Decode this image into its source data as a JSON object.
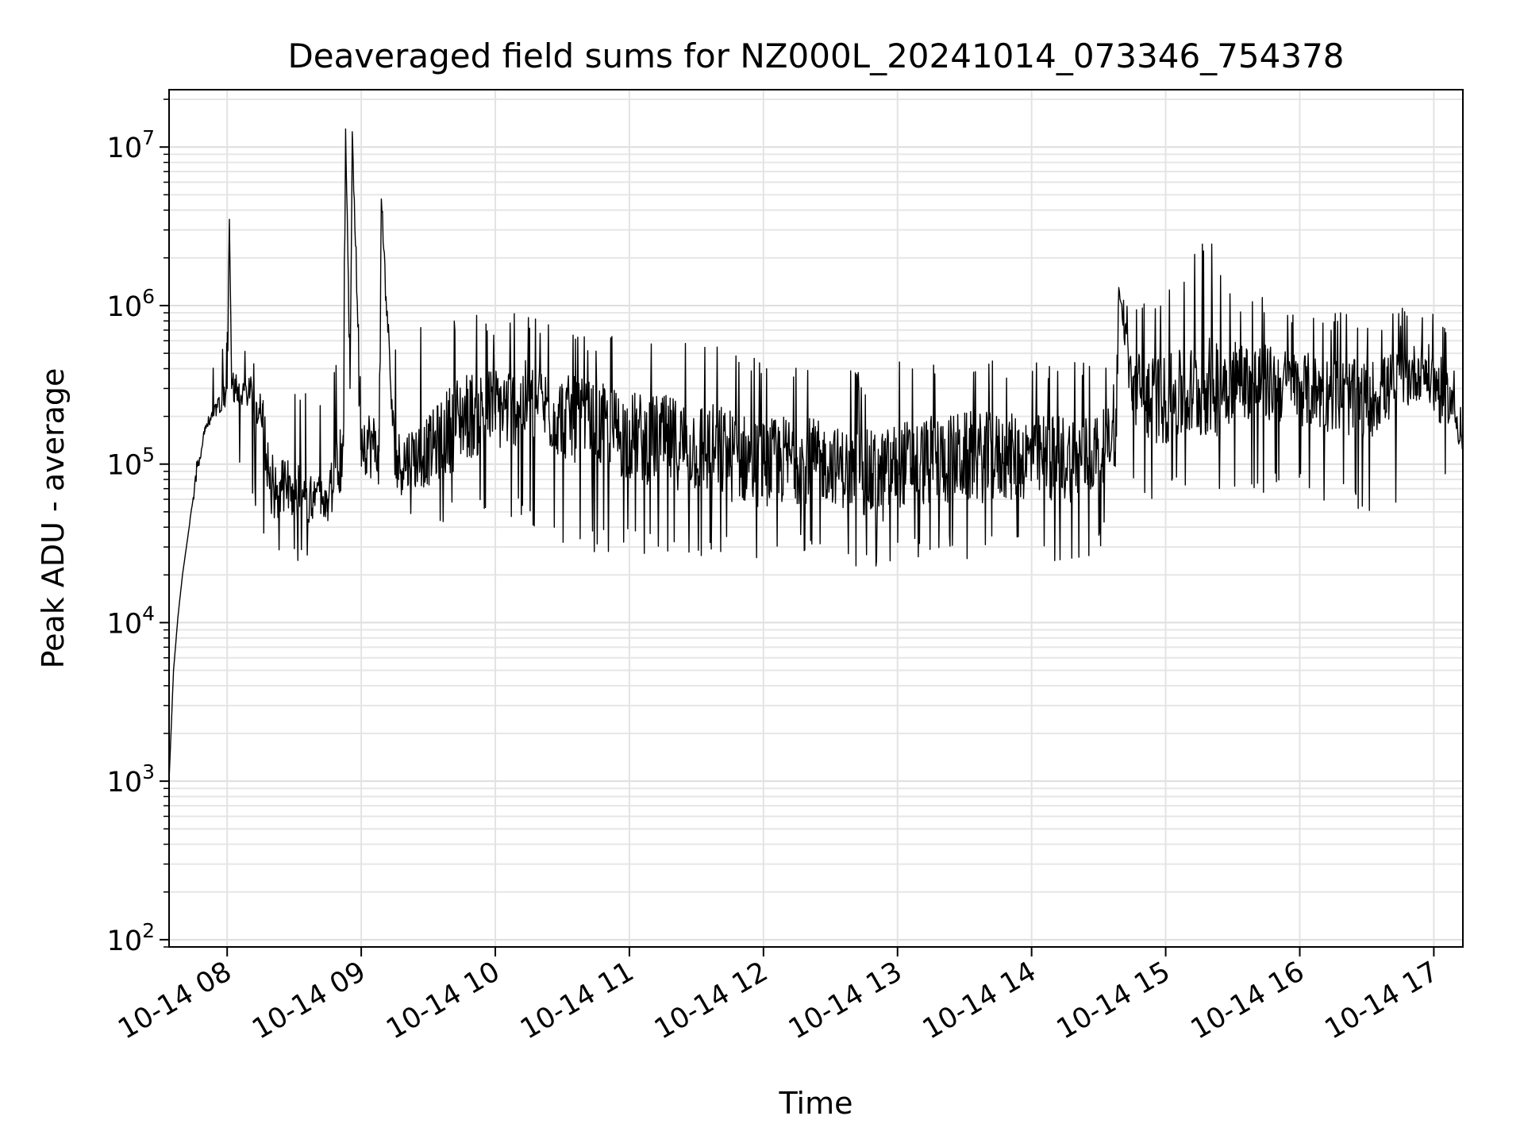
{
  "chart_data": {
    "type": "line",
    "title": "Deaveraged field sums for NZ000L_20241014_073346_754378",
    "xlabel": "Time",
    "ylabel": "Peak ADU - average",
    "yscale": "log",
    "ylim": [
      90,
      23000000
    ],
    "xlim": [
      "2024-10-14 07:34",
      "2024-10-14 17:13"
    ],
    "grid": true,
    "legend": "none",
    "line_color": "#000000",
    "x_tick_labels": [
      "10-14 08",
      "10-14 09",
      "10-14 10",
      "10-14 11",
      "10-14 12",
      "10-14 13",
      "10-14 14",
      "10-14 15",
      "10-14 16",
      "10-14 17"
    ],
    "x_tick_times": [
      "2024-10-14 08:00",
      "2024-10-14 09:00",
      "2024-10-14 10:00",
      "2024-10-14 11:00",
      "2024-10-14 12:00",
      "2024-10-14 13:00",
      "2024-10-14 14:00",
      "2024-10-14 15:00",
      "2024-10-14 16:00",
      "2024-10-14 17:00"
    ],
    "y_tick_values": [
      100,
      1000,
      10000,
      100000,
      1000000,
      10000000
    ],
    "y_tick_labels": [
      {
        "base": "10",
        "exp": "2"
      },
      {
        "base": "10",
        "exp": "3"
      },
      {
        "base": "10",
        "exp": "4"
      },
      {
        "base": "10",
        "exp": "5"
      },
      {
        "base": "10",
        "exp": "6"
      },
      {
        "base": "10",
        "exp": "7"
      }
    ],
    "series": [
      {
        "x": [
          "2024-10-14 07:34",
          "2024-10-14 07:36",
          "2024-10-14 07:38",
          "2024-10-14 07:40",
          "2024-10-14 07:43",
          "2024-10-14 07:46",
          "2024-10-14 07:50",
          "2024-10-14 07:55",
          "2024-10-14 08:00",
          "2024-10-14 08:01",
          "2024-10-14 08:02",
          "2024-10-14 08:10",
          "2024-10-14 08:16",
          "2024-10-14 08:19",
          "2024-10-14 08:25",
          "2024-10-14 08:35",
          "2024-10-14 08:45",
          "2024-10-14 08:52",
          "2024-10-14 08:53",
          "2024-10-14 08:55",
          "2024-10-14 08:56",
          "2024-10-14 09:00",
          "2024-10-14 09:08",
          "2024-10-14 09:09",
          "2024-10-14 09:15",
          "2024-10-14 09:30",
          "2024-10-14 09:45",
          "2024-10-14 10:00",
          "2024-10-14 10:15",
          "2024-10-14 10:30",
          "2024-10-14 11:00",
          "2024-10-14 11:30",
          "2024-10-14 12:00",
          "2024-10-14 12:15",
          "2024-10-14 12:30",
          "2024-10-14 12:52",
          "2024-10-14 13:00",
          "2024-10-14 13:30",
          "2024-10-14 14:00",
          "2024-10-14 14:25",
          "2024-10-14 14:38",
          "2024-10-14 14:39",
          "2024-10-14 14:45",
          "2024-10-14 15:00",
          "2024-10-14 15:18",
          "2024-10-14 15:30",
          "2024-10-14 16:00",
          "2024-10-14 16:30",
          "2024-10-14 16:55",
          "2024-10-14 17:02",
          "2024-10-14 17:08",
          "2024-10-14 17:13"
        ],
        "y": [
          1000,
          5000,
          11000,
          20000,
          40000,
          80000,
          170000,
          220000,
          300000,
          3500000,
          300000,
          300000,
          200000,
          70000,
          70000,
          60000,
          60000,
          130000,
          13000000,
          300000,
          12500000,
          150000,
          120000,
          4700000,
          100000,
          120000,
          200000,
          220000,
          250000,
          200000,
          150000,
          130000,
          100000,
          110000,
          100000,
          80000,
          100000,
          110000,
          110000,
          110000,
          150000,
          1300000,
          300000,
          250000,
          300000,
          350000,
          300000,
          250000,
          400000,
          300000,
          250000,
          130000
        ],
        "peak_max": [
          1000,
          5000,
          11000,
          20000,
          40000,
          100000,
          250000,
          500000,
          700000,
          3500000,
          500000,
          550000,
          400000,
          300000,
          350000,
          300000,
          400000,
          500000,
          13000000,
          900000,
          12500000,
          800000,
          900000,
          4700000,
          900000,
          800000,
          850000,
          900000,
          950000,
          800000,
          650000,
          600000,
          500000,
          500000,
          400000,
          400000,
          450000,
          500000,
          500000,
          450000,
          400000,
          1300000,
          1000000,
          1500000,
          3100000,
          1300000,
          1000000,
          900000,
          1000000,
          1000000,
          500000,
          200000
        ],
        "trough_min": [
          1000,
          5000,
          11000,
          20000,
          40000,
          60000,
          150000,
          180000,
          150000,
          1500000,
          80000,
          80000,
          25000,
          22000,
          22000,
          25000,
          30000,
          35000,
          13000000,
          50000,
          12500000,
          50000,
          40000,
          4700000,
          35000,
          40000,
          40000,
          45000,
          40000,
          30000,
          25000,
          25000,
          25000,
          25000,
          30000,
          17000,
          25000,
          25000,
          28000,
          20000,
          40000,
          1300000,
          60000,
          60000,
          60000,
          60000,
          60000,
          50000,
          60000,
          60000,
          100000,
          100000
        ]
      }
    ]
  }
}
